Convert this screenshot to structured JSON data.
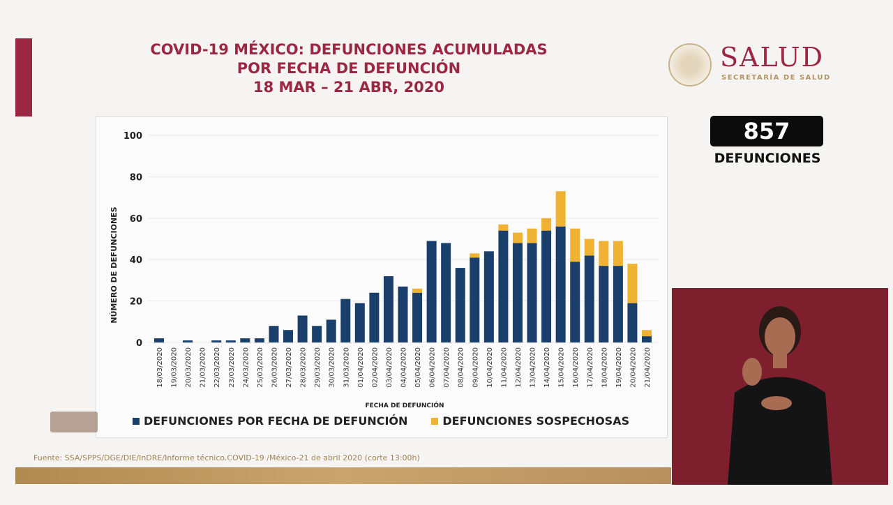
{
  "header": {
    "title_lines": [
      "COVID-19 MÉXICO: DEFUNCIONES ACUMULADAS",
      "POR FECHA DE DEFUNCIÓN",
      "18 MAR – 21 ABR, 2020"
    ]
  },
  "brand": {
    "name": "SALUD",
    "subtitle": "SECRETARÍA DE SALUD"
  },
  "total": {
    "value": "857",
    "label": "DEFUNCIONES"
  },
  "source": "Fuente: SSA/SPPS/DGE/DIE/InDRE/Informe técnico.COVID-19 /México-21 de abril 2020 (corte 13:00h)",
  "colors": {
    "confirmed": "#1b3f6b",
    "suspect": "#f0b232",
    "accent": "#9b2743"
  },
  "chart_data": {
    "type": "bar",
    "stacked": true,
    "title": "COVID-19 MÉXICO: DEFUNCIONES ACUMULADAS POR FECHA DE DEFUNCIÓN",
    "xlabel": "FECHA DE DEFUNCIÓN",
    "ylabel": "NÚMERO DE DEFUNCIONES",
    "ylim": [
      0,
      100
    ],
    "yticks": [
      0,
      20,
      40,
      60,
      80,
      100
    ],
    "grid": true,
    "legend_position": "bottom",
    "categories": [
      "18/03/2020",
      "19/03/2020",
      "20/03/2020",
      "21/03/2020",
      "22/03/2020",
      "23/03/2020",
      "24/03/2020",
      "25/03/2020",
      "26/03/2020",
      "27/03/2020",
      "28/03/2020",
      "29/03/2020",
      "30/03/2020",
      "31/03/2020",
      "01/04/2020",
      "02/04/2020",
      "03/04/2020",
      "04/04/2020",
      "05/04/2020",
      "06/04/2020",
      "07/04/2020",
      "08/04/2020",
      "09/04/2020",
      "10/04/2020",
      "11/04/2020",
      "12/04/2020",
      "13/04/2020",
      "14/04/2020",
      "15/04/2020",
      "16/04/2020",
      "17/04/2020",
      "18/04/2020",
      "19/04/2020",
      "20/04/2020",
      "21/04/2020"
    ],
    "series": [
      {
        "name": "DEFUNCIONES POR FECHA DE DEFUNCIÓN",
        "color": "#1b3f6b",
        "values": [
          2,
          0,
          1,
          0,
          1,
          1,
          2,
          2,
          8,
          6,
          13,
          8,
          11,
          21,
          19,
          24,
          32,
          27,
          24,
          49,
          48,
          36,
          41,
          44,
          54,
          48,
          48,
          54,
          56,
          39,
          42,
          37,
          37,
          19,
          3
        ]
      },
      {
        "name": "DEFUNCIONES SOSPECHOSAS",
        "color": "#f0b232",
        "values": [
          0,
          0,
          0,
          0,
          0,
          0,
          0,
          0,
          0,
          0,
          0,
          0,
          0,
          0,
          0,
          0,
          0,
          0,
          2,
          0,
          0,
          0,
          2,
          0,
          3,
          5,
          7,
          6,
          17,
          16,
          8,
          12,
          12,
          19,
          3
        ]
      }
    ]
  }
}
